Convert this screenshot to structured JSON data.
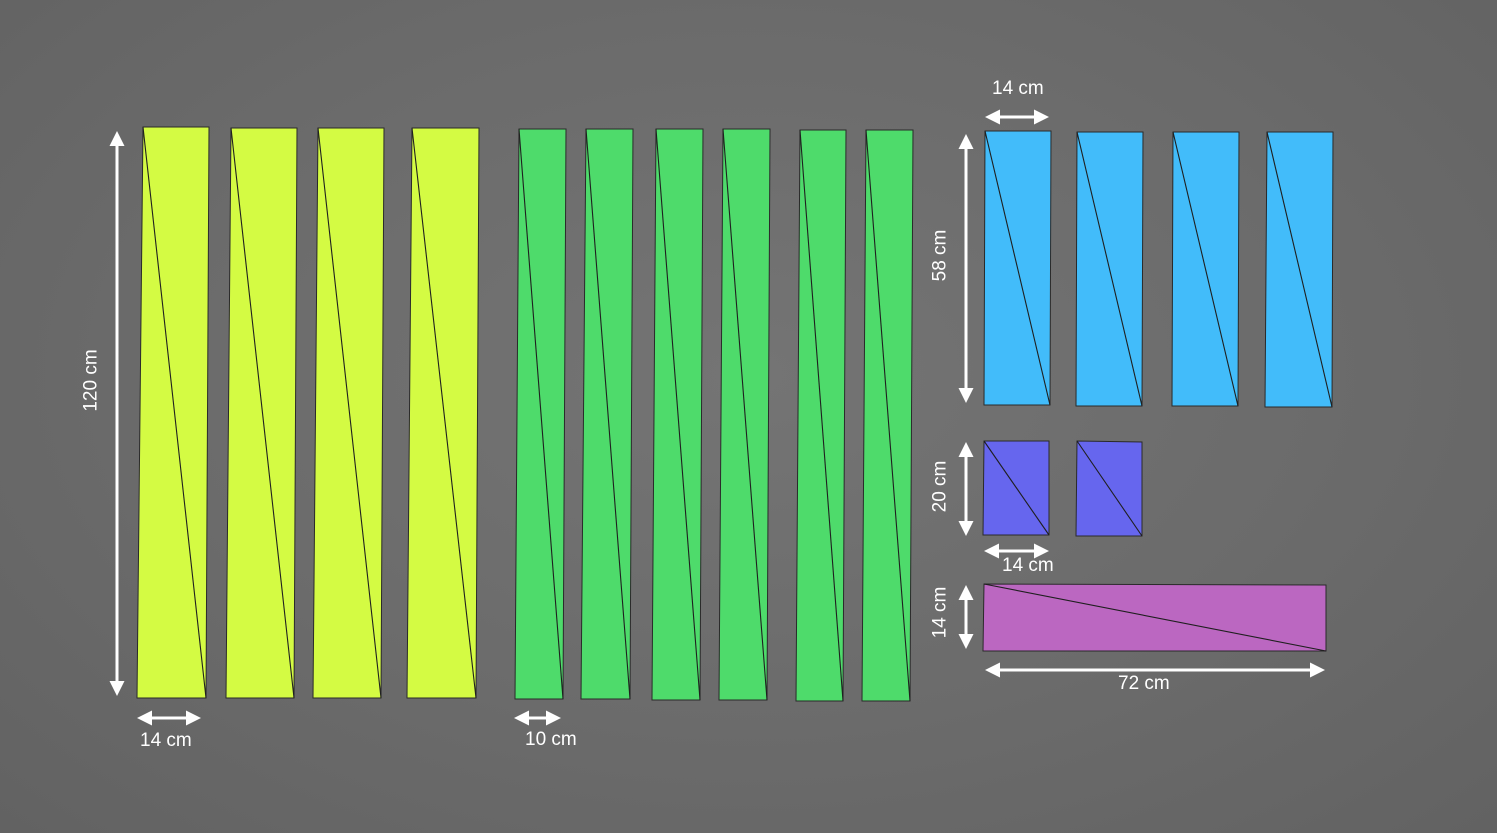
{
  "colors": {
    "background": "#6b6b6b",
    "yellow_board": "#d4fb43",
    "green_board": "#4edb6b",
    "blue_board": "#42bcfa",
    "indigo_board": "#6666ee",
    "purple_board": "#bb67c1",
    "dimension_arrow": "#ffffff"
  },
  "groups": [
    {
      "name": "yellow-boards",
      "count": 4,
      "color": "#d4fb43"
    },
    {
      "name": "green-boards",
      "count": 6,
      "color": "#4edb6b"
    },
    {
      "name": "blue-boards",
      "count": 4,
      "color": "#42bcfa"
    },
    {
      "name": "indigo-boards",
      "count": 2,
      "color": "#6666ee"
    },
    {
      "name": "purple-board",
      "count": 1,
      "color": "#bb67c1"
    }
  ],
  "dimensions": {
    "yellow_height": "120 cm",
    "yellow_width": "14 cm",
    "green_width": "10 cm",
    "blue_width": "14 cm",
    "blue_height": "58 cm",
    "indigo_height": "20 cm",
    "indigo_width": "14 cm",
    "purple_height": "14 cm",
    "purple_width": "72 cm"
  }
}
